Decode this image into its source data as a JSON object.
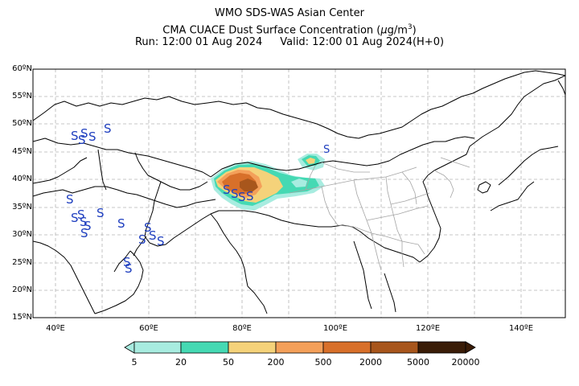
{
  "header": {
    "line1": "WMO SDS-WAS Asian Center",
    "line2_prefix": "CMA CUACE Dust Surface Concentration (",
    "unit_mu": "μ",
    "unit_g": "g/m",
    "unit_exp": "3",
    "line2_suffix": ")",
    "run": "Run: 12:00 01 Aug 2024",
    "valid": "Valid: 12:00 01 Aug 2024(H+0)"
  },
  "map": {
    "lat_labels": [
      "60ºN",
      "55ºN",
      "50ºN",
      "45ºN",
      "40ºN",
      "35ºN",
      "30ºN",
      "25ºN",
      "20ºN",
      "15ºN"
    ],
    "lon_labels": [
      "40ºE",
      "60ºE",
      "80ºE",
      "100ºE",
      "120ºE",
      "140ºE"
    ],
    "lat_range": [
      15,
      60
    ],
    "lon_range": [
      35,
      150
    ],
    "station_symbol": "S",
    "symbol_color": "#1f3fbf"
  },
  "colorbar": {
    "labels": [
      "5",
      "20",
      "50",
      "200",
      "500",
      "2000",
      "5000",
      "20000"
    ],
    "colors": [
      "#a8ece0",
      "#45d9b3",
      "#f5d27a",
      "#f4a05a",
      "#d8702a",
      "#a8561c",
      "#7a3e12",
      "#3a1c07"
    ]
  }
}
